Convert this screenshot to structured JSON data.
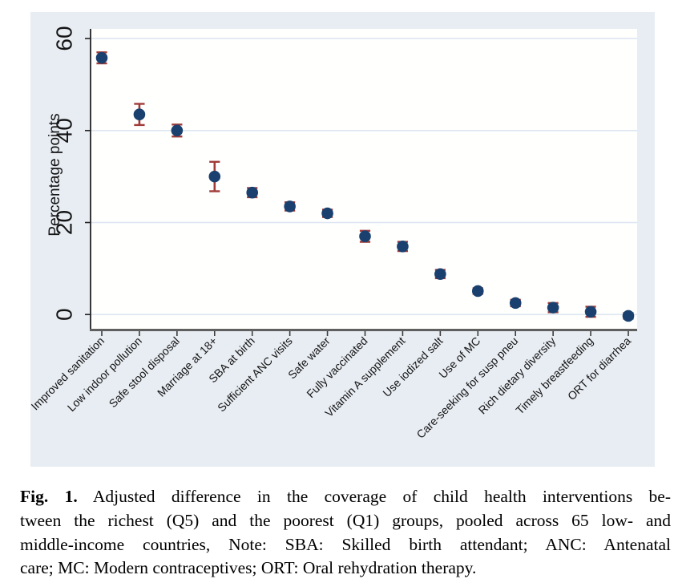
{
  "figure": {
    "caption": {
      "fig_label": "Fig. 1.",
      "line1_rest": " Adjusted difference in the coverage of child health interventions be-",
      "line2": "tween the richest (Q5) and the poorest (Q1) groups, pooled across 65 low- and",
      "line3": "middle-income countries, Note: SBA: Skilled birth attendant; ANC: Antenatal",
      "line4": "care; MC: Modern contraceptives; ORT: Oral rehydration therapy."
    }
  },
  "chart_data": {
    "type": "scatter",
    "title": "",
    "xlabel": "",
    "ylabel": "Percentage points",
    "ylim": [
      -3.1,
      62.1
    ],
    "yticks": [
      0,
      20,
      40,
      60
    ],
    "grid": true,
    "legend": false,
    "marker_style": "filled-circle-with-error-bars",
    "categories": [
      "Improved sanitation",
      "Low indoor pollution",
      "Safe stool disposal",
      "Marriage at 18+",
      "SBA at birth",
      "Sufficient ANC visits",
      "Safe water",
      "Fully vaccinated",
      "Vitamin A supplement",
      "Use iodized salt",
      "Use of MC",
      "Care-seeking for susp pneu",
      "Rich dietary diversity",
      "Timely breastfeeding",
      "ORT for diarrhea"
    ],
    "series": [
      {
        "values": [
          55.8,
          43.5,
          40.0,
          30.0,
          26.5,
          23.5,
          22.0,
          17.0,
          14.8,
          8.8,
          5.1,
          2.5,
          1.5,
          0.6,
          -0.3
        ],
        "ci_low": [
          54.6,
          41.2,
          38.7,
          26.8,
          25.5,
          22.6,
          21.2,
          15.8,
          13.8,
          7.9,
          4.5,
          1.8,
          0.5,
          -0.5,
          -0.9
        ],
        "ci_high": [
          57.0,
          45.8,
          41.3,
          33.2,
          27.5,
          24.4,
          22.8,
          18.2,
          15.8,
          9.7,
          5.7,
          3.2,
          2.5,
          1.7,
          0.3
        ]
      }
    ],
    "colors": {
      "marker": "#1a406f",
      "error_bar": "#a03b38",
      "plot_bg": "#fffffe",
      "figure_bg": "#e8edf3",
      "gridline": "#dde6f1",
      "y_axis": "#222222",
      "x_axis": "#5f5f5f"
    }
  }
}
